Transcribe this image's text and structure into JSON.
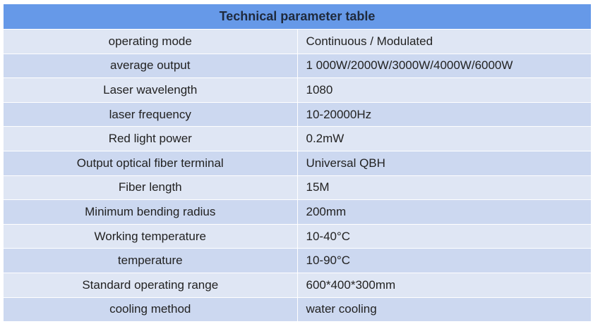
{
  "table": {
    "title": "Technical parameter table",
    "rows": [
      {
        "name": "operating mode",
        "value": "Continuous / Modulated"
      },
      {
        "name": "average output",
        "value": "1 000W/2000W/3000W/4000W/6000W"
      },
      {
        "name": "Laser wavelength",
        "value": "1080"
      },
      {
        "name": "laser frequency",
        "value": "10-20000Hz"
      },
      {
        "name": "Red light power",
        "value": "0.2mW"
      },
      {
        "name": "Output optical fiber terminal",
        "value": "Universal QBH"
      },
      {
        "name": "Fiber length",
        "value": "15M"
      },
      {
        "name": "Minimum bending radius",
        "value": "200mm"
      },
      {
        "name": "Working temperature",
        "value": "10-40°C"
      },
      {
        "name": "temperature",
        "value": "10-90°C"
      },
      {
        "name": "Standard operating range",
        "value": "600*400*300mm"
      },
      {
        "name": "cooling method",
        "value": "water cooling"
      }
    ]
  },
  "colors": {
    "header_bg": "#6699e8",
    "row_light": "#dfe6f4",
    "row_dark": "#ccd8f0"
  }
}
